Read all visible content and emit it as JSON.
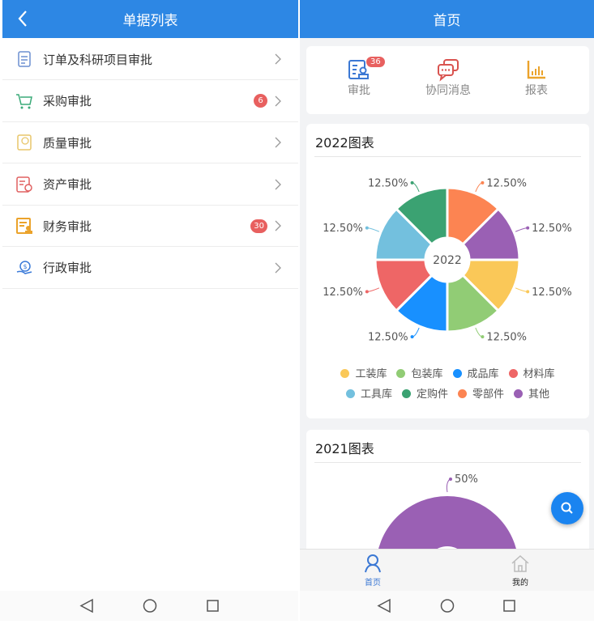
{
  "left": {
    "title": "单据列表",
    "items": [
      {
        "label": "订单及科研项目审批",
        "icon": "document-icon",
        "color": "#6b8fd0",
        "badge": null
      },
      {
        "label": "采购审批",
        "icon": "cart-icon",
        "color": "#3aaa78",
        "badge": "6"
      },
      {
        "label": "质量审批",
        "icon": "quality-icon",
        "color": "#e8c66a",
        "badge": null
      },
      {
        "label": "资产审批",
        "icon": "asset-certificate-icon",
        "color": "#e06060",
        "badge": null
      },
      {
        "label": "财务审批",
        "icon": "finance-stamp-icon",
        "color": "#eba32b",
        "badge": "30"
      },
      {
        "label": "行政审批",
        "icon": "admin-money-hand-icon",
        "color": "#3a7ad8",
        "badge": null
      }
    ]
  },
  "right": {
    "title": "首页",
    "quick": [
      {
        "label": "审批",
        "badge": "36",
        "color": "#3b78d4"
      },
      {
        "label": "协同消息",
        "color": "#d9534f"
      },
      {
        "label": "报表",
        "color": "#eba32b"
      }
    ],
    "tabs": [
      {
        "label": "首页",
        "active": true
      },
      {
        "label": "我的",
        "active": false
      }
    ]
  },
  "chart_data": [
    {
      "type": "pie",
      "title": "2022图表",
      "center_label": "2022",
      "legend_position": "bottom",
      "categories": [
        "工装库",
        "包装库",
        "成品库",
        "材料库",
        "工具库",
        "定购件",
        "零部件",
        "其他"
      ],
      "values": [
        12.5,
        12.5,
        12.5,
        12.5,
        12.5,
        12.5,
        12.5,
        12.5
      ],
      "labels": [
        "12.50%",
        "12.50%",
        "12.50%",
        "12.50%",
        "12.50%",
        "12.50%",
        "12.50%",
        "12.50%"
      ],
      "colors": [
        "#fac858",
        "#91cc75",
        "#1890ff",
        "#ee6666",
        "#73c0de",
        "#3ba272",
        "#fc8452",
        "#9a60b4"
      ]
    },
    {
      "type": "pie",
      "title": "2021图表",
      "visible_labels": [
        "50%"
      ],
      "colors": [
        "#9a60b4"
      ]
    }
  ]
}
